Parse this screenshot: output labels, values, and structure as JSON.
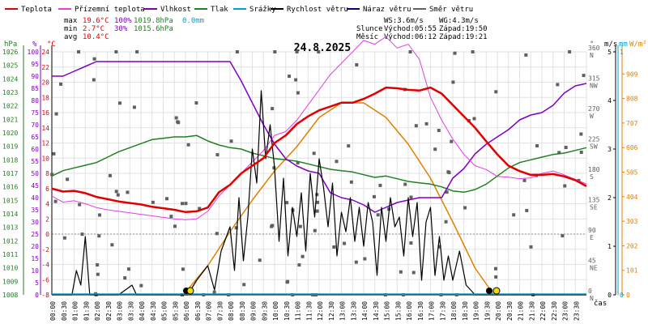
{
  "legend": [
    {
      "label": "Teplota",
      "color": "#e00000"
    },
    {
      "label": "Přízemní teplota",
      "color": "#e040e0"
    },
    {
      "label": "Vlhkost",
      "color": "#8000c0"
    },
    {
      "label": "Tlak",
      "color": "#208020"
    },
    {
      "label": "Srážky",
      "color": "#00a0d0"
    },
    {
      "label": "Rychlost větru",
      "color": "#000000"
    },
    {
      "label": "Náraz větru",
      "color": "#000080"
    },
    {
      "label": "Směr větru",
      "color": "#606060"
    }
  ],
  "stats": {
    "max": {
      "label": "max",
      "t": "19.6°C",
      "h": "100%",
      "p": "1019.8hPa",
      "r": "0.0mm"
    },
    "min": {
      "label": "min",
      "t": "2.7°C",
      "h": "30%",
      "p": "1015.6hPa"
    },
    "avg": {
      "label": "avg",
      "t": "10.4°C"
    }
  },
  "wind_info": {
    "ws": "WS:3.6m/s",
    "wg": "WG:4.3m/s"
  },
  "sun_info": {
    "label": "Slunce",
    "rise": "Východ:05:55",
    "set": "Západ:19:50"
  },
  "moon_info": {
    "label": "Měsíc",
    "rise": "Východ:06:12",
    "set": "Západ:19:21"
  },
  "date": "24.8.2025",
  "axis_titles": {
    "hpa": "hPa",
    "pct": "%",
    "degc": "°C",
    "deg": "°",
    "ms": "m/s",
    "mm": "mm",
    "wm2": "W/m²",
    "time": "čas"
  },
  "colors": {
    "temp": "#e00000",
    "ground": "#e040e0",
    "hum": "#8000c0",
    "press": "#208020",
    "rain": "#00a0d0",
    "wind": "#000000",
    "gust": "#000080",
    "dir": "#606060",
    "solar": "#e08000"
  },
  "chart_data": {
    "type": "line",
    "x_labels": [
      "00:00",
      "00:30",
      "01:00",
      "01:30",
      "02:00",
      "02:30",
      "03:00",
      "03:30",
      "04:00",
      "04:30",
      "05:00",
      "05:30",
      "06:00",
      "06:30",
      "07:00",
      "07:30",
      "08:00",
      "08:30",
      "09:00",
      "09:30",
      "10:00",
      "10:30",
      "11:00",
      "11:30",
      "12:00",
      "12:30",
      "13:00",
      "13:30",
      "14:00",
      "14:30",
      "15:00",
      "15:30",
      "16:00",
      "16:30",
      "17:00",
      "17:30",
      "18:00",
      "18:30",
      "19:00",
      "19:30",
      "20:00",
      "20:30",
      "21:00",
      "21:30",
      "22:00",
      "22:30",
      "23:00",
      "23:30"
    ],
    "axes": {
      "pressure_ticks": [
        "1008",
        "1009",
        "1010",
        "1011",
        "1012",
        "1013",
        "1014",
        "1015",
        "1016",
        "1017",
        "1018",
        "1019",
        "1020",
        "1021",
        "1022",
        "1023",
        "1024",
        "1025",
        "1026"
      ],
      "humidity_ticks": [
        "0",
        "5",
        "10",
        "15",
        "20",
        "25",
        "30",
        "35",
        "40",
        "45",
        "50",
        "55",
        "60",
        "65",
        "70",
        "75",
        "80",
        "85",
        "90",
        "95",
        "100"
      ],
      "temp_ticks": [
        "-8",
        "-6",
        "-4",
        "-2",
        "0",
        "2",
        "4",
        "6",
        "8",
        "10",
        "12",
        "14",
        "16",
        "18",
        "20",
        "22",
        "24"
      ],
      "dir_ticks": [
        {
          "v": "0",
          "n": "N"
        },
        {
          "v": "45",
          "n": "NE"
        },
        {
          "v": "90",
          "n": "E"
        },
        {
          "v": "135",
          "n": "SE"
        },
        {
          "v": "180",
          "n": "S"
        },
        {
          "v": "225",
          "n": "SW"
        },
        {
          "v": "270",
          "n": "W"
        },
        {
          "v": "315",
          "n": "NW"
        },
        {
          "v": "360",
          "n": "N"
        }
      ],
      "wind_ticks": [
        "0",
        "1",
        "2",
        "3",
        "4",
        "5"
      ],
      "rain_ticks": [
        "0",
        "1"
      ],
      "solar_ticks": [
        "0",
        "101",
        "202",
        "303",
        "404",
        "505",
        "606",
        "707",
        "808",
        "909"
      ]
    },
    "series": [
      {
        "name": "Teplota",
        "unit": "°C",
        "x": [
          0,
          0.5,
          1,
          1.5,
          2,
          2.5,
          3,
          3.5,
          4,
          4.5,
          5,
          5.5,
          6,
          6.5,
          7,
          7.5,
          8,
          8.5,
          9,
          9.5,
          10,
          10.5,
          11,
          11.5,
          12,
          12.5,
          13,
          13.5,
          14,
          14.5,
          15,
          15.5,
          16,
          16.5,
          17,
          17.5,
          18,
          18.5,
          19,
          19.5,
          20,
          20.5,
          21,
          21.5,
          22,
          22.5,
          23,
          23.5,
          24
        ],
        "values": [
          6,
          5.6,
          5.7,
          5.4,
          4.9,
          4.6,
          4.3,
          4.1,
          3.9,
          3.6,
          3.4,
          3.2,
          2.9,
          3,
          3.5,
          5.5,
          6.5,
          8,
          9,
          10,
          12,
          13,
          14.5,
          15.5,
          16.3,
          16.8,
          17.3,
          17.3,
          17.8,
          18.5,
          19.3,
          19.2,
          19,
          18.9,
          19.3,
          18.5,
          17,
          15.5,
          14,
          12.2,
          10.5,
          9,
          8.3,
          7.8,
          7.8,
          7.9,
          7.6,
          7.1,
          6.3
        ]
      },
      {
        "name": "Přízemní teplota",
        "unit": "°C",
        "x": [
          0,
          0.5,
          1,
          1.5,
          2,
          2.5,
          3,
          3.5,
          4,
          4.5,
          5,
          5.5,
          6,
          6.5,
          7,
          7.5,
          8,
          8.5,
          9,
          9.5,
          10,
          10.5,
          11,
          11.5,
          12,
          12.5,
          13,
          13.5,
          14,
          14.5,
          15,
          15.5,
          16,
          16.5,
          17,
          17.5,
          18,
          18.5,
          19,
          19.5,
          20,
          20.5,
          21,
          21.5,
          22,
          22.5,
          23,
          23.5,
          24
        ],
        "values": [
          5,
          4.2,
          4.4,
          4,
          3.5,
          3.2,
          3,
          2.8,
          2.6,
          2.4,
          2.2,
          2,
          1.9,
          2,
          3,
          5,
          6.5,
          8,
          9.5,
          11,
          13,
          13.5,
          15,
          17,
          19,
          21,
          22.5,
          24,
          25.5,
          25,
          26,
          24.5,
          25,
          23,
          18,
          15,
          12.5,
          10.5,
          9,
          8.5,
          7.6,
          7.5,
          7.3,
          7.4,
          8,
          8.3,
          7.8,
          7.2,
          6.6
        ]
      },
      {
        "name": "Vlhkost",
        "unit": "%",
        "x": [
          0,
          0.5,
          1,
          1.5,
          2,
          2.5,
          3,
          3.5,
          4,
          4.5,
          5,
          5.5,
          6,
          6.5,
          7,
          7.5,
          8,
          8.5,
          9,
          9.5,
          10,
          10.5,
          11,
          11.5,
          12,
          12.5,
          13,
          13.5,
          14,
          14.5,
          15,
          15.5,
          16,
          16.5,
          17,
          17.5,
          18,
          18.5,
          19,
          19.5,
          20,
          20.5,
          21,
          21.5,
          22,
          22.5,
          23,
          23.5,
          24
        ],
        "values": [
          90,
          90,
          92,
          94,
          96,
          96,
          96,
          96,
          96,
          96,
          96,
          96,
          96,
          96,
          96,
          96,
          96,
          88,
          79,
          70,
          62,
          56,
          53,
          51,
          50,
          42,
          40,
          39,
          37,
          34,
          36,
          38,
          39,
          40,
          40,
          40,
          48,
          52,
          58,
          62,
          65,
          68,
          72,
          74,
          75,
          78,
          83,
          86,
          87
        ]
      },
      {
        "name": "Tlak",
        "unit": "hPa",
        "x": [
          0,
          0.5,
          1,
          1.5,
          2,
          2.5,
          3,
          3.5,
          4,
          4.5,
          5,
          5.5,
          6,
          6.5,
          7,
          7.5,
          8,
          8.5,
          9,
          9.5,
          10,
          10.5,
          11,
          11.5,
          12,
          12.5,
          13,
          13.5,
          14,
          14.5,
          15,
          15.5,
          16,
          16.5,
          17,
          17.5,
          18,
          18.5,
          19,
          19.5,
          20,
          20.5,
          21,
          21.5,
          22,
          22.5,
          23,
          23.5,
          24
        ],
        "values": [
          1016.8,
          1017.2,
          1017.4,
          1017.6,
          1017.8,
          1018.2,
          1018.6,
          1018.9,
          1019.2,
          1019.5,
          1019.6,
          1019.7,
          1019.7,
          1019.8,
          1019.4,
          1019.1,
          1018.9,
          1018.8,
          1018.5,
          1018.3,
          1018.1,
          1018,
          1017.9,
          1017.7,
          1017.5,
          1017.3,
          1017.2,
          1017.1,
          1016.9,
          1016.7,
          1016.8,
          1016.6,
          1016.4,
          1016.3,
          1016.2,
          1016,
          1015.7,
          1015.6,
          1015.8,
          1016.2,
          1016.8,
          1017.4,
          1017.8,
          1018,
          1018.2,
          1018.4,
          1018.5,
          1018.7,
          1018.9
        ]
      },
      {
        "name": "Rychlost větru",
        "unit": "m/s",
        "x": [
          0,
          0.5,
          0.9,
          1.1,
          1.3,
          1.5,
          1.7,
          2,
          3,
          3.6,
          3.8,
          4,
          5,
          5.8,
          6.1,
          6.5,
          7,
          7.3,
          7.6,
          8,
          8.2,
          8.4,
          8.6,
          8.8,
          9,
          9.2,
          9.4,
          9.6,
          9.8,
          10,
          10.2,
          10.4,
          10.6,
          10.8,
          11,
          11.2,
          11.4,
          11.6,
          11.8,
          12,
          12.2,
          12.4,
          12.6,
          12.8,
          13,
          13.2,
          13.4,
          13.6,
          13.8,
          14,
          14.2,
          14.4,
          14.6,
          14.8,
          15,
          15.2,
          15.4,
          15.6,
          15.8,
          16,
          16.2,
          16.4,
          16.6,
          16.8,
          17,
          17.2,
          17.4,
          17.6,
          17.8,
          18,
          18.3,
          18.6,
          19,
          19.5,
          20,
          21,
          22,
          23,
          24
        ],
        "values": [
          0,
          0,
          0,
          0.5,
          0.2,
          1.2,
          0,
          0,
          0,
          0.2,
          0,
          0,
          0,
          0,
          0,
          0.3,
          0.6,
          0.1,
          0.9,
          1.4,
          0.5,
          2,
          0.7,
          1.6,
          3,
          2.3,
          4.2,
          2.8,
          3.5,
          2.6,
          1.1,
          2.4,
          0.8,
          1.8,
          1.2,
          2.1,
          0.9,
          2.5,
          1.6,
          2.8,
          2.2,
          1.4,
          2.3,
          0.8,
          1.7,
          1.3,
          2,
          1.1,
          1.8,
          1,
          1.9,
          1.5,
          0.4,
          1.8,
          1.1,
          2,
          1.4,
          1.6,
          0.8,
          2,
          1.2,
          1.9,
          0.3,
          1.5,
          1.8,
          0.4,
          1.2,
          0.3,
          0.8,
          0.3,
          0.9,
          0.2,
          0,
          0,
          0,
          0,
          0,
          0,
          0
        ]
      },
      {
        "name": "Solar",
        "unit": "W/m²",
        "x": [
          5.9,
          7,
          8,
          9,
          10,
          11,
          12,
          13,
          14,
          15,
          16,
          17,
          18,
          19,
          19.85
        ],
        "values": [
          0,
          120,
          260,
          390,
          510,
          610,
          730,
          790,
          790,
          730,
          620,
          480,
          300,
          110,
          0
        ]
      }
    ]
  }
}
